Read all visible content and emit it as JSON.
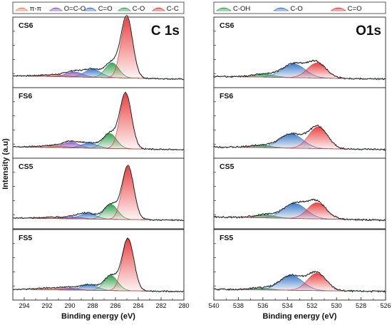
{
  "figure": {
    "ylabel": "Intensity (a.u)"
  },
  "chart_data": [
    {
      "type": "area",
      "element": "C 1s",
      "xlabel": "Binding energy (eV)",
      "ylabel": "Intensity (a.u)",
      "xlim": [
        295,
        280
      ],
      "xticks": [
        294,
        292,
        290,
        288,
        286,
        284,
        282,
        280
      ],
      "xtick_labels": [
        "294",
        "292",
        "290",
        "288",
        "286",
        "284",
        "282",
        "280"
      ],
      "legend": [
        "π-π",
        "O=C-O",
        "C=O",
        "C-O",
        "C-C"
      ],
      "legend_position": "top",
      "colors": {
        "π-π": "#e8845a",
        "O=C-O": "#8a56c0",
        "C=O": "#3a78c8",
        "C-O": "#2ea04a",
        "C-C": "#e83a3a"
      },
      "panels": [
        {
          "label": "CS6",
          "baseline": 0.06,
          "noise": 0.012,
          "peaks": [
            {
              "name": "π-π",
              "center": 291.3,
              "fwhm": 3.0,
              "height": 0.03
            },
            {
              "name": "O=C-O",
              "center": 289.6,
              "fwhm": 1.7,
              "height": 0.08
            },
            {
              "name": "C=O",
              "center": 288.0,
              "fwhm": 1.7,
              "height": 0.13
            },
            {
              "name": "C-O",
              "center": 286.3,
              "fwhm": 1.4,
              "height": 0.24
            },
            {
              "name": "C-C",
              "center": 285.0,
              "fwhm": 1.2,
              "height": 0.98
            }
          ]
        },
        {
          "label": "FS6",
          "baseline": 0.05,
          "noise": 0.012,
          "peaks": [
            {
              "name": "π-π",
              "center": 291.5,
              "fwhm": 3.0,
              "height": 0.03
            },
            {
              "name": "O=C-O",
              "center": 289.9,
              "fwhm": 1.7,
              "height": 0.09
            },
            {
              "name": "C=O",
              "center": 288.3,
              "fwhm": 1.7,
              "height": 0.08
            },
            {
              "name": "C-O",
              "center": 286.5,
              "fwhm": 1.4,
              "height": 0.24
            },
            {
              "name": "C-C",
              "center": 285.1,
              "fwhm": 1.2,
              "height": 0.89
            }
          ]
        },
        {
          "label": "CS5",
          "baseline": 0.04,
          "noise": 0.012,
          "peaks": [
            {
              "name": "π-π",
              "center": 291.5,
              "fwhm": 3.0,
              "height": 0.02
            },
            {
              "name": "O=C-O",
              "center": 289.6,
              "fwhm": 1.7,
              "height": 0.03
            },
            {
              "name": "C=O",
              "center": 288.4,
              "fwhm": 1.7,
              "height": 0.09
            },
            {
              "name": "C-O",
              "center": 286.4,
              "fwhm": 1.4,
              "height": 0.24
            },
            {
              "name": "C-C",
              "center": 284.9,
              "fwhm": 1.2,
              "height": 0.86
            }
          ]
        },
        {
          "label": "FS5",
          "baseline": 0.04,
          "noise": 0.012,
          "peaks": [
            {
              "name": "π-π",
              "center": 291.5,
              "fwhm": 3.0,
              "height": 0.03
            },
            {
              "name": "O=C-O",
              "center": 289.9,
              "fwhm": 1.7,
              "height": 0.03
            },
            {
              "name": "C=O",
              "center": 288.3,
              "fwhm": 1.7,
              "height": 0.09
            },
            {
              "name": "C-O",
              "center": 286.4,
              "fwhm": 1.4,
              "height": 0.24
            },
            {
              "name": "C-C",
              "center": 284.9,
              "fwhm": 1.2,
              "height": 0.84
            }
          ]
        }
      ]
    },
    {
      "type": "area",
      "element": "O1s",
      "xlabel": "Binding energy (eV)",
      "ylabel": "Intensity (a.u)",
      "xlim": [
        540,
        526
      ],
      "xticks": [
        540,
        538,
        536,
        534,
        532,
        530,
        528,
        526
      ],
      "xtick_labels": [
        "540",
        "538",
        "536",
        "534",
        "532",
        "530",
        "528",
        "526"
      ],
      "legend": [
        "C-OH",
        "C-O",
        "C=O"
      ],
      "legend_position": "top",
      "colors": {
        "C-OH": "#2ea04a",
        "C-O": "#3a78c8",
        "C=O": "#e83a3a"
      },
      "panels": [
        {
          "label": "CS6",
          "baseline": 0.05,
          "noise": 0.015,
          "peaks": [
            {
              "name": "C-OH",
              "center": 536.0,
              "fwhm": 2.0,
              "height": 0.05
            },
            {
              "name": "C-O",
              "center": 533.5,
              "fwhm": 2.2,
              "height": 0.22
            },
            {
              "name": "C=O",
              "center": 531.6,
              "fwhm": 1.8,
              "height": 0.24
            }
          ]
        },
        {
          "label": "FS6",
          "baseline": 0.05,
          "noise": 0.015,
          "peaks": [
            {
              "name": "C-OH",
              "center": 536.2,
              "fwhm": 2.0,
              "height": 0.04
            },
            {
              "name": "C-O",
              "center": 533.7,
              "fwhm": 2.2,
              "height": 0.23
            },
            {
              "name": "C=O",
              "center": 531.5,
              "fwhm": 1.8,
              "height": 0.35
            }
          ]
        },
        {
          "label": "CS5",
          "baseline": 0.06,
          "noise": 0.015,
          "peaks": [
            {
              "name": "C-OH",
              "center": 535.9,
              "fwhm": 2.0,
              "height": 0.05
            },
            {
              "name": "C-O",
              "center": 533.4,
              "fwhm": 2.2,
              "height": 0.24
            },
            {
              "name": "C=O",
              "center": 531.6,
              "fwhm": 1.8,
              "height": 0.26
            }
          ]
        },
        {
          "label": "FS5",
          "baseline": 0.04,
          "noise": 0.015,
          "peaks": [
            {
              "name": "C-OH",
              "center": 536.3,
              "fwhm": 2.0,
              "height": 0.03
            },
            {
              "name": "C-O",
              "center": 533.7,
              "fwhm": 2.2,
              "height": 0.24
            },
            {
              "name": "C=O",
              "center": 531.6,
              "fwhm": 1.8,
              "height": 0.28
            }
          ]
        }
      ]
    }
  ]
}
